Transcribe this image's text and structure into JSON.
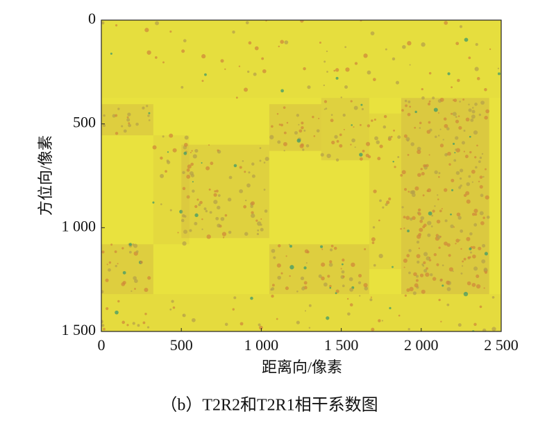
{
  "chart_data": {
    "type": "heatmap",
    "title": "（b）T2R2和T2R1相干系数图",
    "x_label": "距离向/像素",
    "y_label": "方位向/像素",
    "xlim": [
      0,
      2500
    ],
    "ylim": [
      0,
      1500
    ],
    "y_inverted": true,
    "xticks": [
      0,
      500,
      {
        "value": 1000,
        "label": "1 000"
      },
      {
        "value": 1500,
        "label": "1 500"
      },
      {
        "value": 2000,
        "label": "2 000"
      },
      {
        "value": 2500,
        "label": "2 500"
      }
    ],
    "yticks": [
      0,
      500,
      {
        "value": 1000,
        "label": "1 000"
      },
      {
        "value": 1500,
        "label": "1 500"
      }
    ]
  }
}
